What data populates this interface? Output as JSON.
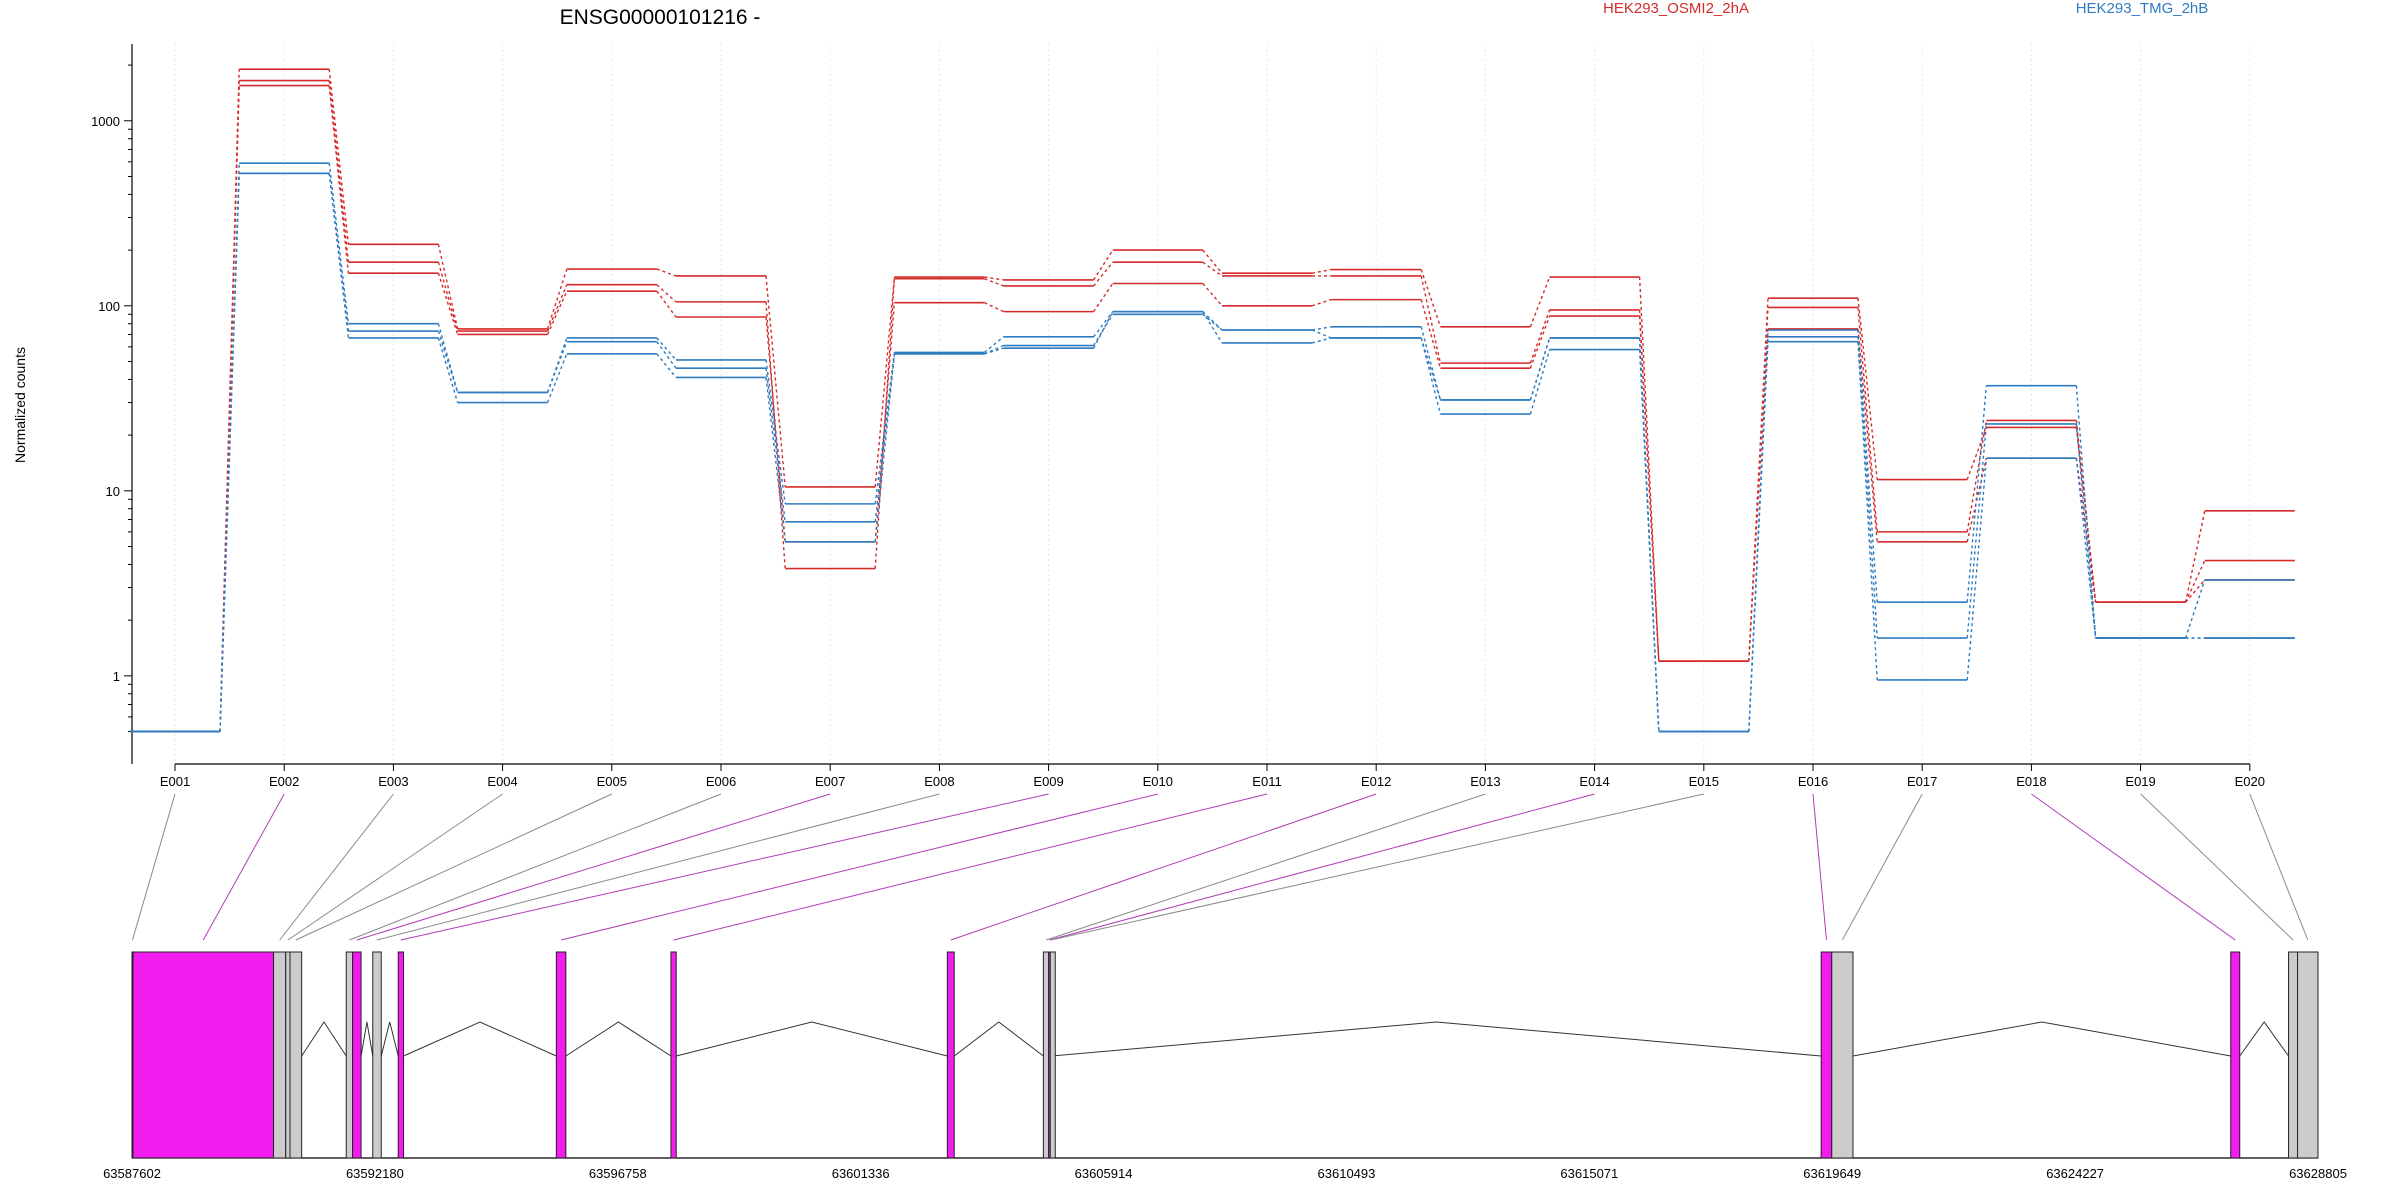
{
  "colors": {
    "HEK293_OSMI2_2hA": "#d62a2a",
    "HEK293_TMG_2hB": "#2f7bbf",
    "significant_exon": "#f21cee",
    "other_exon": "#cccccc",
    "connector_significant": "#b23ab8",
    "connector_other": "#8a8a8a"
  },
  "chart_data": {
    "type": "line",
    "title": "ENSG00000101216 -",
    "ylabel": "Normalized counts",
    "yscale": "log",
    "ylim": [
      0.45,
      2600
    ],
    "ytick_labels": [
      "1",
      "10",
      "100",
      "1000"
    ],
    "ytick_values": [
      1,
      10,
      100,
      1000
    ],
    "categories": [
      "E001",
      "E002",
      "E003",
      "E004",
      "E005",
      "E006",
      "E007",
      "E008",
      "E009",
      "E010",
      "E011",
      "E012",
      "E013",
      "E014",
      "E015",
      "E016",
      "E017",
      "E018",
      "E019",
      "E020"
    ],
    "legend": [
      {
        "label": "HEK293_OSMI2_2hA",
        "color": "#d62a2a"
      },
      {
        "label": "HEK293_TMG_2hB",
        "color": "#2f7bbf"
      }
    ],
    "series": [
      {
        "group": "HEK293_OSMI2_2hA",
        "values": [
          0.5,
          1900,
          215,
          75,
          158,
          145,
          10.5,
          143,
          138,
          200,
          150,
          157,
          77,
          143,
          1.2,
          110,
          11.5,
          22,
          2.5,
          7.8
        ]
      },
      {
        "group": "HEK293_OSMI2_2hA",
        "values": [
          0.5,
          1650,
          172,
          73,
          130,
          105,
          3.8,
          140,
          128,
          172,
          145,
          145,
          49,
          95,
          1.2,
          98,
          6,
          24,
          2.5,
          4.2
        ]
      },
      {
        "group": "HEK293_OSMI2_2hA",
        "values": [
          0.5,
          1550,
          150,
          70,
          120,
          87,
          5.3,
          104,
          93,
          132,
          100,
          108,
          46,
          88,
          1.2,
          75,
          5.3,
          15,
          2.5,
          3.3
        ]
      },
      {
        "group": "HEK293_TMG_2hB",
        "values": [
          0.5,
          590,
          80,
          34,
          67,
          51,
          8.5,
          56,
          68,
          93,
          74,
          77,
          31,
          67,
          0.5,
          74,
          2.5,
          37,
          1.6,
          1.6
        ]
      },
      {
        "group": "HEK293_TMG_2hB",
        "values": [
          0.5,
          520,
          73,
          34,
          64,
          46,
          6.8,
          55,
          61,
          90,
          74,
          67,
          31,
          67,
          0.5,
          68,
          1.6,
          23,
          1.6,
          3.3
        ]
      },
      {
        "group": "HEK293_TMG_2hB",
        "values": [
          0.5,
          520,
          67,
          30,
          55,
          41,
          5.3,
          55,
          59,
          93,
          63,
          67,
          26,
          58,
          0.5,
          64,
          0.95,
          15,
          1.6,
          1.6
        ]
      }
    ],
    "gene_model": {
      "coordinate_labels": [
        "63587602",
        "63592180",
        "63596758",
        "63601336",
        "63605914",
        "63610493",
        "63615071",
        "63619649",
        "63624227",
        "63628805"
      ],
      "coordinate_values": [
        63587602,
        63592180,
        63596758,
        63601336,
        63605914,
        63610493,
        63615071,
        63619649,
        63624227,
        63628805
      ],
      "exons": [
        {
          "id": "E001",
          "start": 63587602,
          "end": 63587620,
          "significant": false
        },
        {
          "id": "E002",
          "start": 63587620,
          "end": 63590270,
          "significant": true
        },
        {
          "id": "E003",
          "start": 63590270,
          "end": 63590500,
          "significant": false
        },
        {
          "id": "E004",
          "start": 63590500,
          "end": 63590580,
          "significant": false
        },
        {
          "id": "E005",
          "start": 63590580,
          "end": 63590800,
          "significant": false
        },
        {
          "id": "E006",
          "start": 63591640,
          "end": 63591760,
          "significant": false
        },
        {
          "id": "E007",
          "start": 63591760,
          "end": 63591920,
          "significant": true
        },
        {
          "id": "E008",
          "start": 63592140,
          "end": 63592300,
          "significant": false
        },
        {
          "id": "E009",
          "start": 63592620,
          "end": 63592720,
          "significant": true
        },
        {
          "id": "E010",
          "start": 63595600,
          "end": 63595780,
          "significant": true
        },
        {
          "id": "E011",
          "start": 63597760,
          "end": 63597860,
          "significant": true
        },
        {
          "id": "E012",
          "start": 63602970,
          "end": 63603100,
          "significant": true
        },
        {
          "id": "E013",
          "start": 63604780,
          "end": 63604880,
          "significant": false
        },
        {
          "id": "E014",
          "start": 63604880,
          "end": 63604910,
          "significant": true
        },
        {
          "id": "E015",
          "start": 63604910,
          "end": 63604940,
          "significant": false
        },
        {
          "id": "E016",
          "start": 63619440,
          "end": 63619640,
          "significant": true
        },
        {
          "id": "E017",
          "start": 63619640,
          "end": 63620040,
          "significant": false
        },
        {
          "id": "E018",
          "start": 63627160,
          "end": 63627330,
          "significant": true
        },
        {
          "id": "E019",
          "start": 63628250,
          "end": 63628420,
          "significant": false
        },
        {
          "id": "E020",
          "start": 63628420,
          "end": 63628805,
          "significant": false
        }
      ]
    }
  }
}
